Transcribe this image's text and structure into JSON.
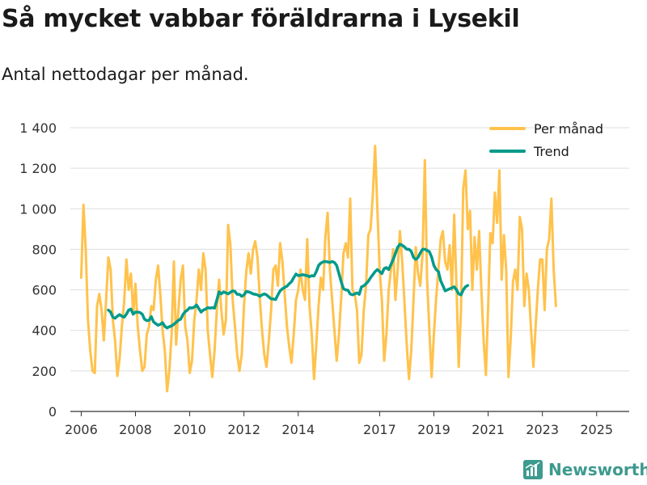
{
  "title": "Så mycket vabbar föräldrarna i Lysekil",
  "subtitle": "Antal nettodagar per månad.",
  "brand": {
    "name": "Newsworthy",
    "icon": "newsworthy-logo-icon",
    "color": "#3d9a8e"
  },
  "chart_data": {
    "type": "line",
    "ylim": [
      0,
      1400
    ],
    "yticks": [
      0,
      200,
      400,
      600,
      800,
      1000,
      1200,
      1400
    ],
    "ytick_labels": [
      "0",
      "200",
      "400",
      "600",
      "800",
      "1 000",
      "1 200",
      "1 400"
    ],
    "xlim": [
      2005.6,
      2026.2
    ],
    "xticks": [
      2006,
      2008,
      2010,
      2012,
      2014,
      2017,
      2019,
      2021,
      2023,
      2025
    ],
    "xtick_labels": [
      "2006",
      "2008",
      "2010",
      "2012",
      "2014",
      "2017",
      "2019",
      "2021",
      "2023",
      "2025"
    ],
    "grid": true,
    "legend_position": "top-right",
    "series": [
      {
        "name": "Per månad",
        "color": "#ffc24c",
        "start": 2006.0,
        "step": 0.08333,
        "values": [
          660,
          1020,
          800,
          450,
          300,
          200,
          190,
          520,
          580,
          500,
          350,
          550,
          760,
          700,
          450,
          350,
          175,
          260,
          420,
          540,
          750,
          600,
          680,
          480,
          630,
          420,
          300,
          200,
          220,
          380,
          420,
          520,
          500,
          650,
          720,
          580,
          400,
          300,
          100,
          200,
          380,
          740,
          330,
          500,
          650,
          720,
          420,
          350,
          190,
          250,
          450,
          550,
          700,
          600,
          780,
          700,
          400,
          280,
          170,
          300,
          500,
          650,
          500,
          380,
          450,
          920,
          820,
          550,
          420,
          280,
          200,
          280,
          520,
          690,
          780,
          680,
          800,
          840,
          760,
          560,
          400,
          280,
          220,
          350,
          500,
          700,
          720,
          620,
          830,
          740,
          580,
          420,
          320,
          240,
          380,
          550,
          600,
          700,
          600,
          550,
          850,
          520,
          380,
          160,
          330,
          520,
          660,
          600,
          860,
          980,
          700,
          550,
          400,
          250,
          380,
          560,
          780,
          830,
          760,
          1050,
          600,
          580,
          500,
          240,
          280,
          500,
          620,
          870,
          900,
          1070,
          1310,
          1000,
          700,
          550,
          250,
          380,
          600,
          700,
          800,
          550,
          700,
          890,
          740,
          540,
          330,
          160,
          300,
          550,
          810,
          680,
          620,
          780,
          1240,
          650,
          400,
          170,
          380,
          560,
          700,
          850,
          890,
          740,
          700,
          820,
          600,
          970,
          620,
          220,
          500,
          1100,
          1190,
          900,
          990,
          600,
          860,
          700,
          890,
          600,
          350,
          180,
          520,
          880,
          830,
          1080,
          930,
          1190,
          650,
          870,
          700,
          170,
          360,
          640,
          700,
          600,
          960,
          900,
          520,
          680,
          600,
          400,
          220,
          420,
          600,
          750,
          750,
          500,
          800,
          850,
          1050,
          700,
          520
        ]
      },
      {
        "name": "Trend",
        "color": "#009a8a",
        "start": 2007.0,
        "step": 0.08333,
        "values": [
          500,
          490,
          465,
          460,
          470,
          478,
          470,
          465,
          480,
          500,
          505,
          480,
          490,
          490,
          488,
          480,
          455,
          448,
          450,
          468,
          442,
          433,
          425,
          430,
          438,
          420,
          412,
          418,
          422,
          430,
          440,
          450,
          455,
          478,
          492,
          500,
          512,
          510,
          515,
          525,
          508,
          490,
          500,
          505,
          512,
          510,
          512,
          510,
          550,
          590,
          580,
          590,
          585,
          580,
          588,
          595,
          592,
          578,
          578,
          568,
          575,
          592,
          590,
          586,
          580,
          578,
          575,
          568,
          575,
          580,
          575,
          565,
          556,
          555,
          552,
          575,
          595,
          605,
          612,
          618,
          630,
          640,
          660,
          678,
          670,
          672,
          675,
          672,
          670,
          665,
          670,
          668,
          690,
          720,
          732,
          738,
          740,
          738,
          735,
          740,
          735,
          720,
          680,
          640,
          605,
          600,
          598,
          580,
          575,
          580,
          585,
          578,
          615,
          620,
          630,
          642,
          660,
          675,
          690,
          700,
          690,
          680,
          705,
          710,
          700,
          725,
          750,
          780,
          810,
          825,
          820,
          812,
          800,
          800,
          790,
          760,
          750,
          760,
          782,
          800,
          800,
          795,
          788,
          762,
          720,
          700,
          690,
          645,
          620,
          595,
          600,
          605,
          610,
          615,
          600,
          580,
          575,
          600,
          615,
          622
        ]
      }
    ]
  }
}
